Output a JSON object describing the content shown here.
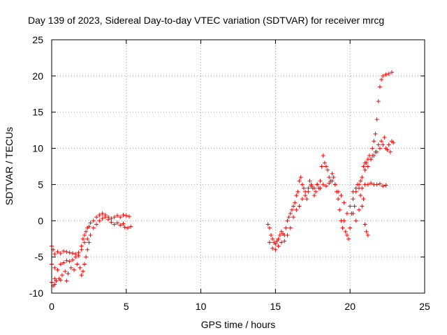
{
  "chart_data": {
    "type": "scatter",
    "title": "Day 139 of 2023, Sidereal Day-to-day VTEC variation (SDTVAR) for receiver mrcg",
    "xlabel": "GPS time / hours",
    "ylabel": "SDTVAR / TECUs",
    "xlim": [
      0,
      25
    ],
    "ylim": [
      -10,
      25
    ],
    "x_ticks": [
      0,
      5,
      10,
      15,
      20,
      25
    ],
    "y_ticks": [
      -10,
      -5,
      0,
      5,
      10,
      15,
      20,
      25
    ],
    "x_tick_labels": [
      "0",
      "5",
      "10",
      "15",
      "20",
      "25"
    ],
    "y_tick_labels": [
      "-10",
      "-5",
      "0",
      "5",
      "10",
      "15",
      "20",
      "25"
    ],
    "grid": true,
    "legend": "none",
    "marker": "plus",
    "color": "#ff0000",
    "series": [
      {
        "points": [
          [
            0.0,
            -3.5
          ],
          [
            0.1,
            -4.0
          ],
          [
            0.2,
            -4.6
          ],
          [
            0.4,
            -4.3
          ],
          [
            0.6,
            -4.5
          ],
          [
            0.8,
            -4.2
          ],
          [
            1.0,
            -4.3
          ],
          [
            1.2,
            -4.4
          ],
          [
            1.4,
            -4.5
          ],
          [
            1.6,
            -4.6
          ],
          [
            1.8,
            -4.4
          ],
          [
            2.0,
            -3.5
          ],
          [
            2.1,
            -2.5
          ],
          [
            2.2,
            -2.0
          ],
          [
            2.3,
            -1.5
          ],
          [
            2.4,
            -1.0
          ],
          [
            2.5,
            -0.8
          ],
          [
            2.6,
            -0.3
          ],
          [
            2.8,
            0.0
          ],
          [
            3.0,
            0.5
          ],
          [
            3.2,
            0.8
          ],
          [
            3.4,
            1.0
          ],
          [
            3.6,
            0.8
          ],
          [
            3.8,
            0.5
          ],
          [
            4.0,
            0.3
          ],
          [
            4.2,
            0.5
          ],
          [
            4.4,
            0.7
          ],
          [
            4.6,
            0.5
          ],
          [
            4.8,
            0.8
          ],
          [
            5.0,
            0.7
          ],
          [
            5.2,
            0.6
          ],
          [
            5.3,
            -0.8
          ],
          [
            5.1,
            -1.0
          ],
          [
            4.9,
            -0.9
          ],
          [
            0.0,
            -6.0
          ],
          [
            0.2,
            -6.5
          ],
          [
            0.4,
            -6.8
          ],
          [
            0.6,
            -6.0
          ],
          [
            0.8,
            -5.8
          ],
          [
            1.0,
            -5.5
          ],
          [
            1.2,
            -5.6
          ],
          [
            1.4,
            -5.4
          ],
          [
            1.6,
            -5.0
          ],
          [
            1.8,
            -4.8
          ],
          [
            2.0,
            -4.0
          ],
          [
            2.2,
            -3.0
          ],
          [
            2.4,
            -2.5
          ],
          [
            2.6,
            -2.0
          ],
          [
            2.8,
            -1.0
          ],
          [
            3.0,
            -0.5
          ],
          [
            3.2,
            0.0
          ],
          [
            3.4,
            0.3
          ],
          [
            3.6,
            0.5
          ],
          [
            3.8,
            0.2
          ],
          [
            4.0,
            -0.2
          ],
          [
            4.2,
            -0.5
          ],
          [
            4.4,
            -0.3
          ],
          [
            4.6,
            -0.6
          ],
          [
            4.8,
            -0.4
          ],
          [
            0.0,
            -8.5
          ],
          [
            0.1,
            -9.0
          ],
          [
            0.2,
            -8.8
          ],
          [
            0.3,
            -8.3
          ],
          [
            0.5,
            -8.0
          ],
          [
            0.7,
            -7.5
          ],
          [
            0.9,
            -7.0
          ],
          [
            1.1,
            -7.3
          ],
          [
            1.3,
            -6.5
          ],
          [
            1.5,
            -6.8
          ],
          [
            1.7,
            -6.0
          ],
          [
            1.9,
            -6.5
          ],
          [
            2.0,
            -7.5
          ],
          [
            2.1,
            -7.0
          ],
          [
            2.2,
            -6.0
          ],
          [
            2.3,
            -5.0
          ],
          [
            2.4,
            -4.0
          ],
          [
            2.5,
            -3.0
          ],
          [
            0.2,
            -8.0
          ],
          [
            0.6,
            -8.2
          ],
          [
            1.0,
            -8.3
          ],
          [
            14.5,
            -0.5
          ],
          [
            14.6,
            -1.0
          ],
          [
            14.7,
            -2.0
          ],
          [
            14.8,
            -2.5
          ],
          [
            14.9,
            -3.0
          ],
          [
            15.0,
            -3.2
          ],
          [
            15.1,
            -2.8
          ],
          [
            15.2,
            -2.5
          ],
          [
            15.3,
            -2.0
          ],
          [
            15.4,
            -1.5
          ],
          [
            15.5,
            -1.8
          ],
          [
            15.6,
            -2.0
          ],
          [
            15.7,
            -1.0
          ],
          [
            15.8,
            0.0
          ],
          [
            15.9,
            0.5
          ],
          [
            16.0,
            1.0
          ],
          [
            16.1,
            1.5
          ],
          [
            16.2,
            2.0
          ],
          [
            16.3,
            2.5
          ],
          [
            16.4,
            3.5
          ],
          [
            16.5,
            4.0
          ],
          [
            16.6,
            5.5
          ],
          [
            16.7,
            6.0
          ],
          [
            16.8,
            5.0
          ],
          [
            16.9,
            4.5
          ],
          [
            17.0,
            3.5
          ],
          [
            17.1,
            3.0
          ],
          [
            17.2,
            4.0
          ],
          [
            17.3,
            5.5
          ],
          [
            17.4,
            4.8
          ],
          [
            17.5,
            4.5
          ],
          [
            17.6,
            3.5
          ],
          [
            17.7,
            4.0
          ],
          [
            17.8,
            5.0
          ],
          [
            17.9,
            4.5
          ],
          [
            18.0,
            5.5
          ],
          [
            18.1,
            7.5
          ],
          [
            18.2,
            9.0
          ],
          [
            18.3,
            8.0
          ],
          [
            18.4,
            7.5
          ],
          [
            18.5,
            7.0
          ],
          [
            18.6,
            6.0
          ],
          [
            18.7,
            5.5
          ],
          [
            18.8,
            6.5
          ],
          [
            18.9,
            6.0
          ],
          [
            19.0,
            5.0
          ],
          [
            19.1,
            4.0
          ],
          [
            19.2,
            3.0
          ],
          [
            19.3,
            1.5
          ],
          [
            19.4,
            0.0
          ],
          [
            19.5,
            -1.0
          ],
          [
            19.6,
            0.0
          ],
          [
            19.7,
            -1.5
          ],
          [
            19.8,
            -2.0
          ],
          [
            19.9,
            -2.5
          ],
          [
            20.0,
            -1.0
          ],
          [
            20.1,
            1.0
          ],
          [
            20.2,
            3.0
          ],
          [
            20.3,
            2.0
          ],
          [
            20.4,
            4.0
          ],
          [
            20.5,
            5.0
          ],
          [
            20.6,
            4.5
          ],
          [
            20.7,
            5.5
          ],
          [
            20.8,
            6.0
          ],
          [
            20.9,
            7.5
          ],
          [
            21.0,
            7.0
          ],
          [
            21.1,
            8.0
          ],
          [
            21.2,
            8.5
          ],
          [
            21.3,
            9.0
          ],
          [
            21.4,
            8.5
          ],
          [
            21.5,
            10.0
          ],
          [
            21.6,
            11.0
          ],
          [
            21.7,
            12.0
          ],
          [
            21.8,
            14.0
          ],
          [
            21.9,
            16.5
          ],
          [
            22.0,
            18.5
          ],
          [
            22.1,
            19.5
          ],
          [
            22.2,
            20.0
          ],
          [
            22.4,
            20.2
          ],
          [
            22.6,
            20.3
          ],
          [
            22.8,
            20.5
          ],
          [
            14.6,
            -3.0
          ],
          [
            14.8,
            -3.8
          ],
          [
            15.0,
            -4.0
          ],
          [
            15.2,
            -3.5
          ],
          [
            15.4,
            -3.0
          ],
          [
            15.6,
            -2.8
          ],
          [
            15.8,
            -2.0
          ],
          [
            16.0,
            -1.0
          ],
          [
            16.2,
            0.5
          ],
          [
            16.4,
            1.5
          ],
          [
            16.6,
            2.0
          ],
          [
            16.8,
            3.0
          ],
          [
            17.0,
            4.0
          ],
          [
            17.2,
            4.5
          ],
          [
            17.4,
            5.0
          ],
          [
            17.6,
            4.5
          ],
          [
            17.8,
            5.0
          ],
          [
            18.0,
            4.5
          ],
          [
            18.2,
            5.0
          ],
          [
            18.4,
            4.8
          ],
          [
            18.6,
            5.2
          ],
          [
            18.8,
            5.5
          ],
          [
            19.0,
            5.0
          ],
          [
            19.2,
            4.0
          ],
          [
            19.4,
            3.5
          ],
          [
            19.6,
            2.5
          ],
          [
            19.8,
            1.0
          ],
          [
            20.0,
            2.0
          ],
          [
            20.2,
            4.0
          ],
          [
            20.4,
            4.5
          ],
          [
            20.6,
            5.0
          ],
          [
            20.8,
            4.5
          ],
          [
            21.0,
            5.0
          ],
          [
            21.2,
            5.0
          ],
          [
            21.4,
            5.2
          ],
          [
            21.6,
            5.0
          ],
          [
            21.8,
            5.0
          ],
          [
            22.0,
            5.1
          ],
          [
            22.2,
            4.8
          ],
          [
            22.4,
            4.9
          ],
          [
            20.2,
            1.0
          ],
          [
            20.4,
            0.0
          ],
          [
            20.6,
            1.5
          ],
          [
            20.8,
            2.0
          ],
          [
            21.0,
            -0.5
          ],
          [
            21.1,
            -1.5
          ],
          [
            21.2,
            -2.0
          ],
          [
            21.0,
            8.0
          ],
          [
            21.2,
            7.5
          ],
          [
            21.4,
            8.5
          ],
          [
            21.6,
            9.0
          ],
          [
            21.8,
            9.5
          ],
          [
            22.0,
            10.0
          ],
          [
            22.2,
            10.5
          ],
          [
            22.4,
            10.0
          ],
          [
            22.6,
            10.5
          ],
          [
            22.8,
            11.0
          ],
          [
            22.9,
            10.8
          ],
          [
            22.5,
            9.8
          ],
          [
            22.7,
            9.5
          ],
          [
            21.5,
            9.0
          ],
          [
            21.7,
            9.5
          ],
          [
            21.9,
            10.5
          ],
          [
            22.1,
            11.0
          ],
          [
            22.3,
            11.5
          ],
          [
            20.9,
            3.0
          ],
          [
            20.7,
            3.5
          ]
        ]
      }
    ]
  }
}
